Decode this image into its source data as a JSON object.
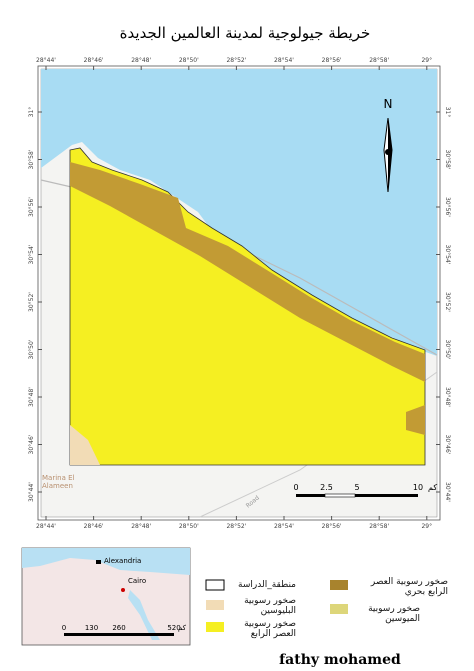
{
  "title": "خريطة جيولوجية لمدينة العالمين الجديدة",
  "map": {
    "lon_labels": [
      "28°44'",
      "28°46'",
      "28°48'",
      "28°50'",
      "28°52'",
      "28°54'",
      "28°56'",
      "28°58'",
      "29°"
    ],
    "lat_labels": [
      "31°",
      "30°58'",
      "30°56'",
      "30°54'",
      "30°52'",
      "30°50'",
      "30°48'",
      "30°46'",
      "30°44'"
    ],
    "north": "N",
    "place": "Marina El Alameen",
    "road": "Road",
    "scale": {
      "ticks": [
        0,
        2.5,
        5,
        10
      ],
      "unit": "كم"
    }
  },
  "inset": {
    "cities": [
      "Alexandria",
      "Cairo"
    ],
    "scale": {
      "ticks": [
        0,
        130,
        260,
        520
      ],
      "unit": "كم"
    }
  },
  "legend": [
    "منطقة_الدراسة",
    "صخور رسوبية البليوسين",
    "صخور رسوبية العصر الرابع",
    "صخور رسوبية العصر الرابع بحري",
    "صخور رسوبية الميوسين"
  ],
  "author": "fathy mohamed"
}
